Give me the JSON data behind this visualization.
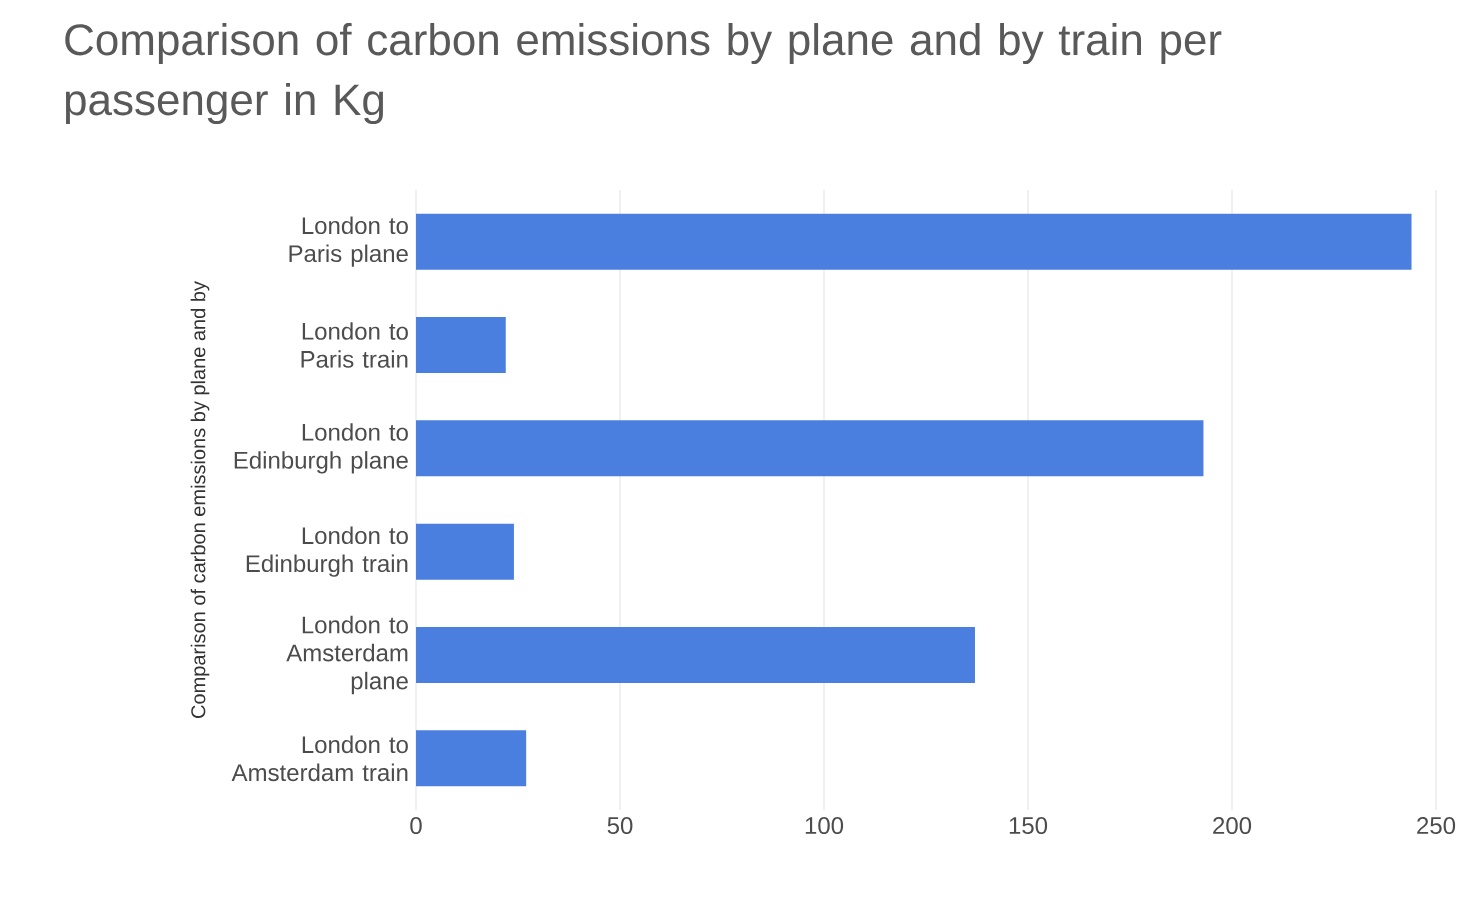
{
  "chart_data": {
    "type": "bar",
    "orientation": "horizontal",
    "title": "Comparison of carbon emissions by plane and by train per passenger in Kg",
    "ylabel": "Comparison of carbon emissions by plane and by",
    "categories": [
      "London to Paris plane",
      "London to Paris train",
      "London to Edinburgh plane",
      "London to Edinburgh train",
      "London to Amsterdam plane",
      "London to Amsterdam train"
    ],
    "values": [
      244,
      22,
      193,
      24,
      137,
      27
    ],
    "color": "#4a7fe0",
    "xlim": [
      0,
      250
    ],
    "xticks": [
      0,
      50,
      100,
      150,
      200,
      250
    ],
    "grid": "x"
  }
}
